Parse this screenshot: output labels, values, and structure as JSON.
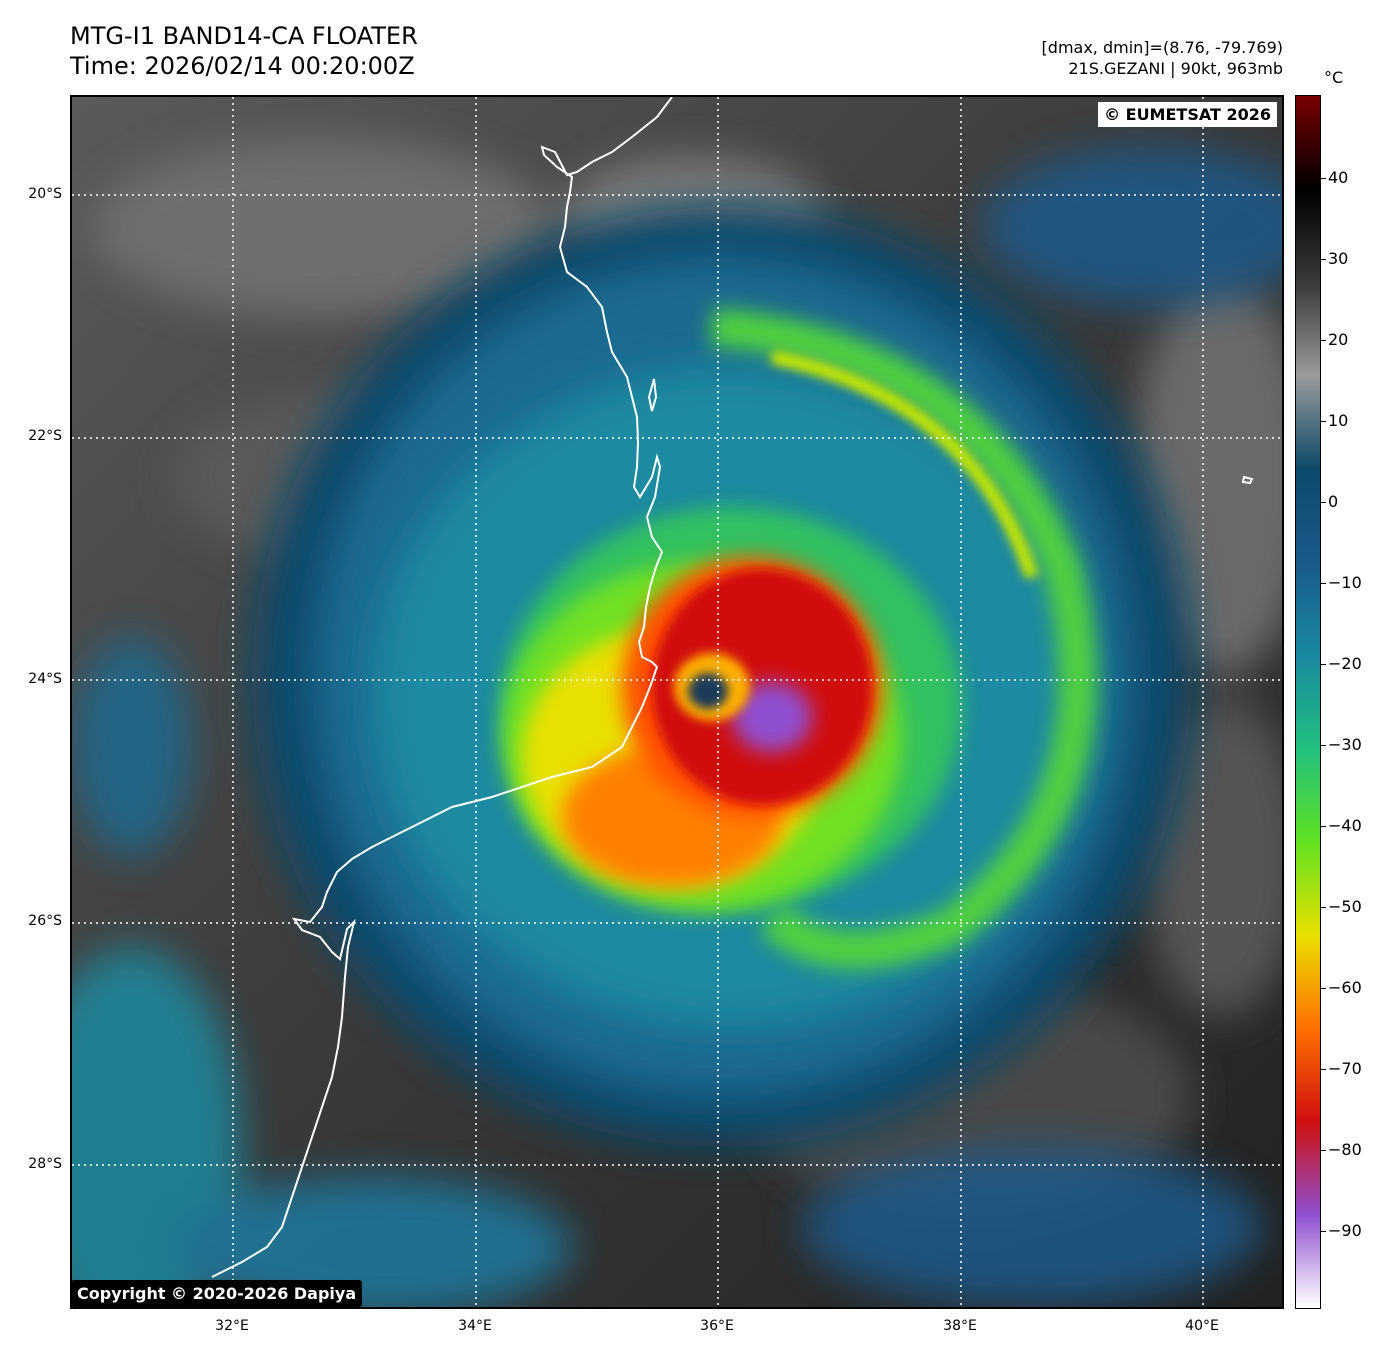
{
  "title": {
    "line1": "MTG-I1 BAND14-CA FLOATER",
    "line2": "Time: 2026/02/14 00:20:00Z"
  },
  "info": {
    "line1": "[dmax, dmin]=(8.76, -79.769)",
    "line2": "21S.GEZANI | 90kt, 963mb"
  },
  "badges": {
    "eumetsat": "© EUMETSAT 2026",
    "copyright": "Copyright © 2020-2026 Dapiya"
  },
  "map": {
    "lat_labels": [
      "20°S",
      "22°S",
      "24°S",
      "26°S",
      "28°S"
    ],
    "lon_labels": [
      "32°E",
      "34°E",
      "36°E",
      "38°E",
      "40°E"
    ],
    "coastline_color": "#ffffff",
    "grid_color": "#ffffff"
  },
  "colorbar": {
    "unit": "°C",
    "ticks": [
      "40",
      "30",
      "20",
      "10",
      "0",
      "−10",
      "−20",
      "−30",
      "−40",
      "−50",
      "−60",
      "−70",
      "−80",
      "−90"
    ],
    "colors": [
      "#7a0000",
      "#000000",
      "#3a3a3a",
      "#9a9a9a",
      "#0d4a6a",
      "#1a5a8a",
      "#1a8aa0",
      "#20c080",
      "#60e020",
      "#e8e000",
      "#ff7000",
      "#d01010",
      "#9050d0",
      "#ffffff"
    ]
  }
}
